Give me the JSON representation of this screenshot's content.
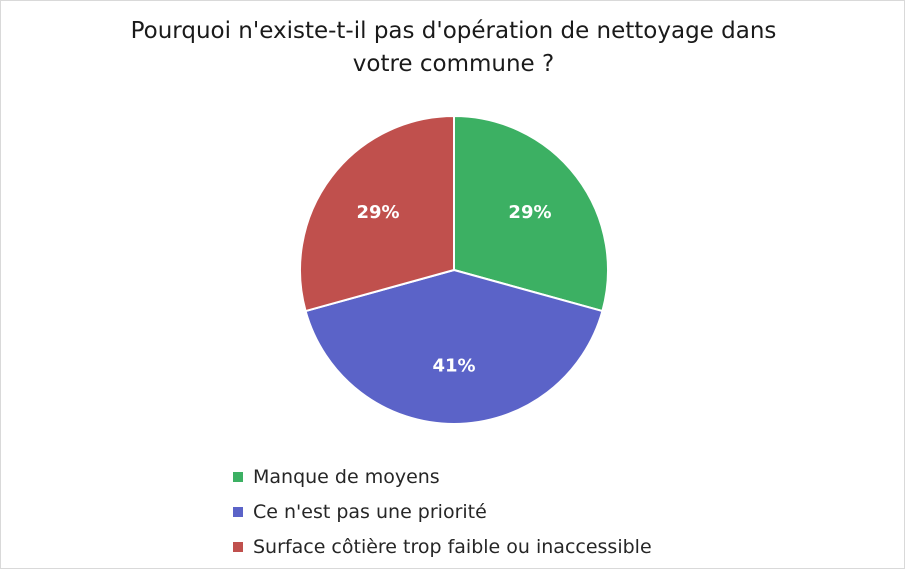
{
  "chart_data": {
    "type": "pie",
    "title_lines": [
      "Pourquoi n'existe-t-il pas d'opération de nettoyage dans",
      "votre commune ?"
    ],
    "slices": [
      {
        "label": "Manque de moyens",
        "value": 29,
        "display": "29%",
        "color": "#3cb063"
      },
      {
        "label": "Ce n'est pas une priorité",
        "value": 41,
        "display": "41%",
        "color": "#5b63c8"
      },
      {
        "label": "Surface côtière trop faible ou inaccessible",
        "value": 29,
        "display": "29%",
        "color": "#c0504d"
      }
    ],
    "legend_position": "bottom"
  }
}
